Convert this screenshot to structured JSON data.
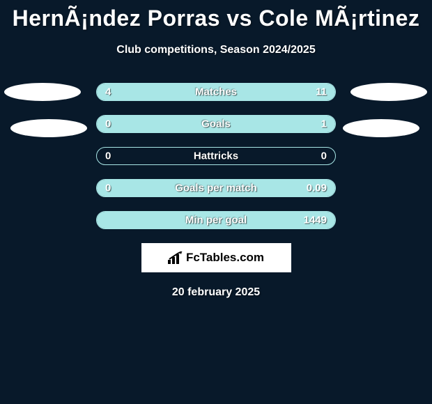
{
  "title": "HernÃ¡ndez Porras vs Cole MÃ¡rtinez",
  "subtitle": "Club competitions, Season 2024/2025",
  "date": "20 february 2025",
  "logo_text": "FcTables.com",
  "colors": {
    "background": "#08192a",
    "bar_fill": "#a8e6e6",
    "bar_border": "#a8e6e6",
    "text": "#ffffff",
    "logo_bg": "#ffffff",
    "logo_text": "#000000"
  },
  "bars": [
    {
      "label": "Matches",
      "left_val": "4",
      "right_val": "11",
      "left_pct": 27,
      "right_pct": 73
    },
    {
      "label": "Goals",
      "left_val": "0",
      "right_val": "1",
      "left_pct": 0,
      "right_pct": 100
    },
    {
      "label": "Hattricks",
      "left_val": "0",
      "right_val": "0",
      "left_pct": 0,
      "right_pct": 0
    },
    {
      "label": "Goals per match",
      "left_val": "0",
      "right_val": "0.09",
      "left_pct": 0,
      "right_pct": 100
    },
    {
      "label": "Min per goal",
      "left_val": "",
      "right_val": "1449",
      "left_pct": 0,
      "right_pct": 100
    }
  ]
}
